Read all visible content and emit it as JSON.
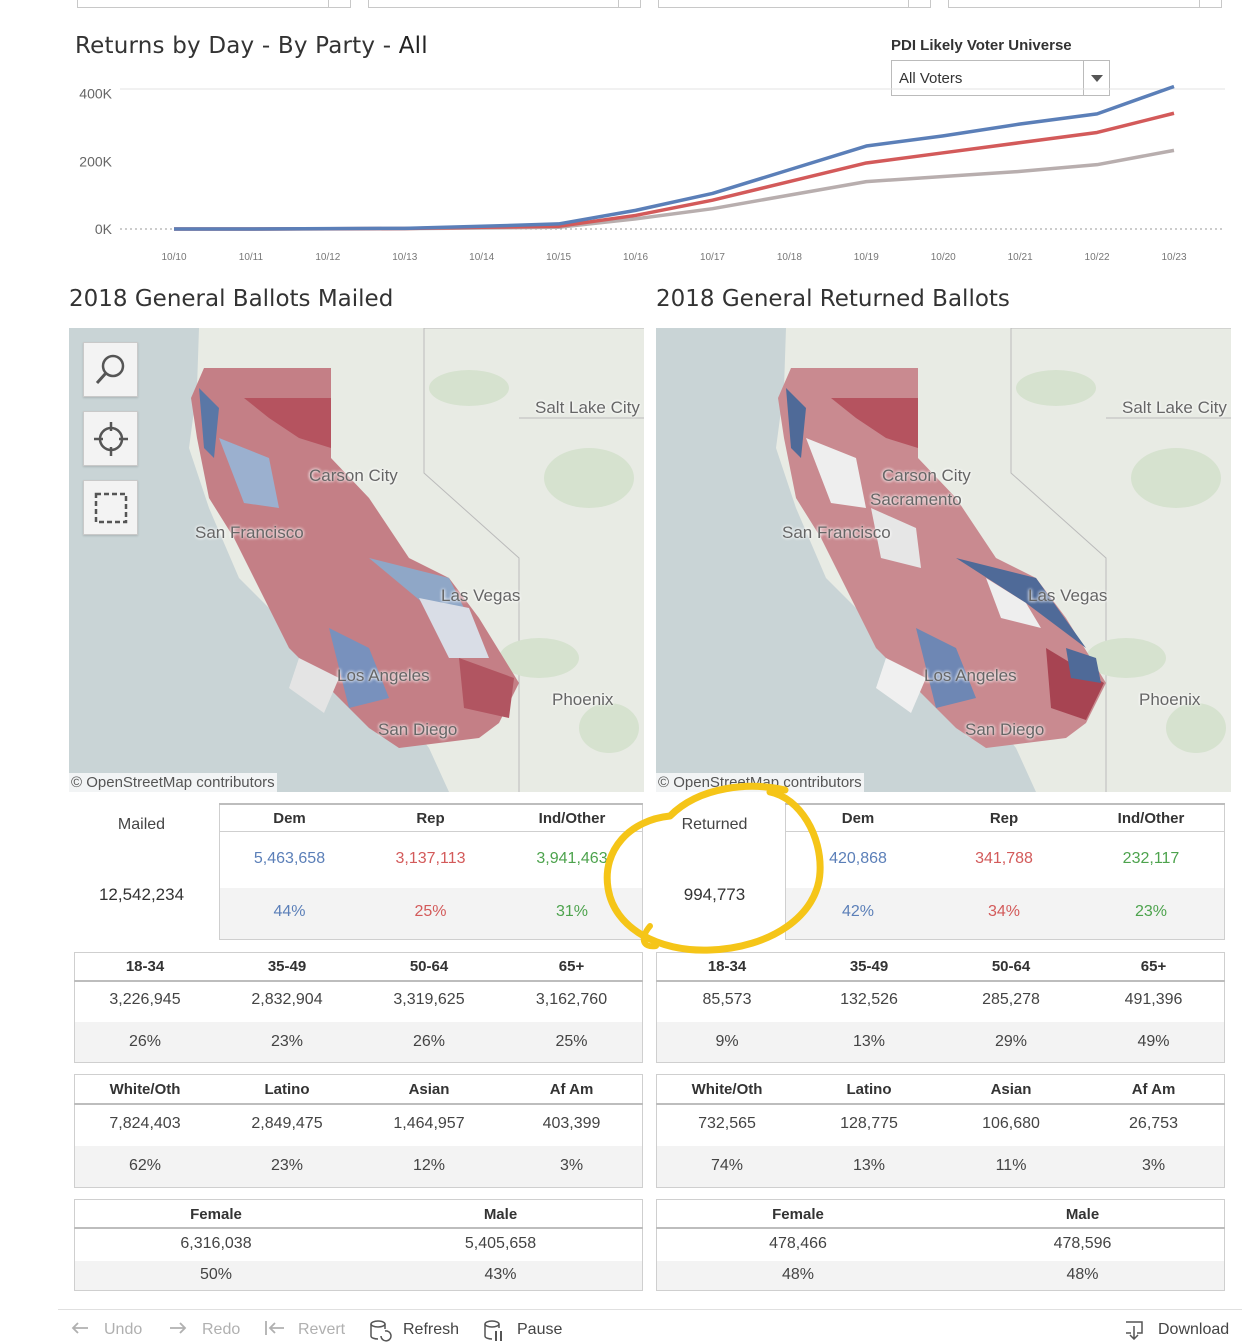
{
  "chart": {
    "title_main": "Returns by Day - By Party - ",
    "title_accent": "All"
  },
  "filter": {
    "label": "PDI Likely Voter Universe",
    "value": "All Voters"
  },
  "chart_data": {
    "type": "line",
    "title": "Returns by Day - By Party - All",
    "xlabel": "",
    "ylabel": "",
    "x": [
      "10/10",
      "10/11",
      "10/12",
      "10/13",
      "10/14",
      "10/15",
      "10/16",
      "10/17",
      "10/18",
      "10/19",
      "10/20",
      "10/21",
      "10/22",
      "10/23"
    ],
    "y_ticks": [
      "0K",
      "200K",
      "400K"
    ],
    "ylim": [
      0,
      440000
    ],
    "grid": false,
    "series": [
      {
        "color": "#5b7fb8",
        "values": [
          0,
          0,
          1000,
          2000,
          8000,
          15000,
          55000,
          105000,
          175000,
          245000,
          275000,
          310000,
          340000,
          420868
        ]
      },
      {
        "color": "#d35a5a",
        "values": [
          0,
          0,
          800,
          1500,
          5000,
          8000,
          40000,
          85000,
          140000,
          195000,
          225000,
          255000,
          285000,
          341788
        ]
      },
      {
        "color": "#b8aeae",
        "values": [
          0,
          0,
          500,
          1000,
          3000,
          5000,
          30000,
          60000,
          100000,
          140000,
          155000,
          170000,
          190000,
          232117
        ]
      }
    ]
  },
  "maps": {
    "mailed_title": "2018 General Ballots Mailed",
    "returned_title": "2018 General Returned Ballots",
    "attribution": "© OpenStreetMap contributors",
    "cities": {
      "salt_lake": "Salt Lake City",
      "carson": "Carson City",
      "las_vegas": "Las Vegas",
      "phoenix": "Phoenix",
      "san_diego": "San Diego",
      "san_francisco": "San Francisco",
      "los_angeles": "Los Angeles",
      "sacramento": "Sacramento"
    }
  },
  "mailed": {
    "label": "Mailed",
    "total": "12,542,234",
    "party_headers": [
      "Dem",
      "Rep",
      "Ind/Other"
    ],
    "party_counts": [
      "5,463,658",
      "3,137,113",
      "3,941,463"
    ],
    "party_pcts": [
      "44%",
      "25%",
      "31%"
    ],
    "age_headers": [
      "18-34",
      "35-49",
      "50-64",
      "65+"
    ],
    "age_counts": [
      "3,226,945",
      "2,832,904",
      "3,319,625",
      "3,162,760"
    ],
    "age_pcts": [
      "26%",
      "23%",
      "26%",
      "25%"
    ],
    "race_headers": [
      "White/Oth",
      "Latino",
      "Asian",
      "Af Am"
    ],
    "race_counts": [
      "7,824,403",
      "2,849,475",
      "1,464,957",
      "403,399"
    ],
    "race_pcts": [
      "62%",
      "23%",
      "12%",
      "3%"
    ],
    "gender_headers": [
      "Female",
      "Male"
    ],
    "gender_counts": [
      "6,316,038",
      "5,405,658"
    ],
    "gender_pcts": [
      "50%",
      "43%"
    ]
  },
  "returned": {
    "label": "Returned",
    "total": "994,773",
    "party_headers": [
      "Dem",
      "Rep",
      "Ind/Other"
    ],
    "party_counts": [
      "420,868",
      "341,788",
      "232,117"
    ],
    "party_pcts": [
      "42%",
      "34%",
      "23%"
    ],
    "age_headers": [
      "18-34",
      "35-49",
      "50-64",
      "65+"
    ],
    "age_counts": [
      "85,573",
      "132,526",
      "285,278",
      "491,396"
    ],
    "age_pcts": [
      "9%",
      "13%",
      "29%",
      "49%"
    ],
    "race_headers": [
      "White/Oth",
      "Latino",
      "Asian",
      "Af Am"
    ],
    "race_counts": [
      "732,565",
      "128,775",
      "106,680",
      "26,753"
    ],
    "race_pcts": [
      "74%",
      "13%",
      "11%",
      "3%"
    ],
    "gender_headers": [
      "Female",
      "Male"
    ],
    "gender_counts": [
      "478,466",
      "478,596"
    ],
    "gender_pcts": [
      "48%",
      "48%"
    ]
  },
  "toolbar": {
    "undo": "Undo",
    "redo": "Redo",
    "revert": "Revert",
    "refresh": "Refresh",
    "pause": "Pause",
    "download": "Download"
  },
  "colors": {
    "dem": "#5b7fb8",
    "rep": "#d35a5a",
    "ind": "#4da34d",
    "highlight": "#f5c518"
  }
}
